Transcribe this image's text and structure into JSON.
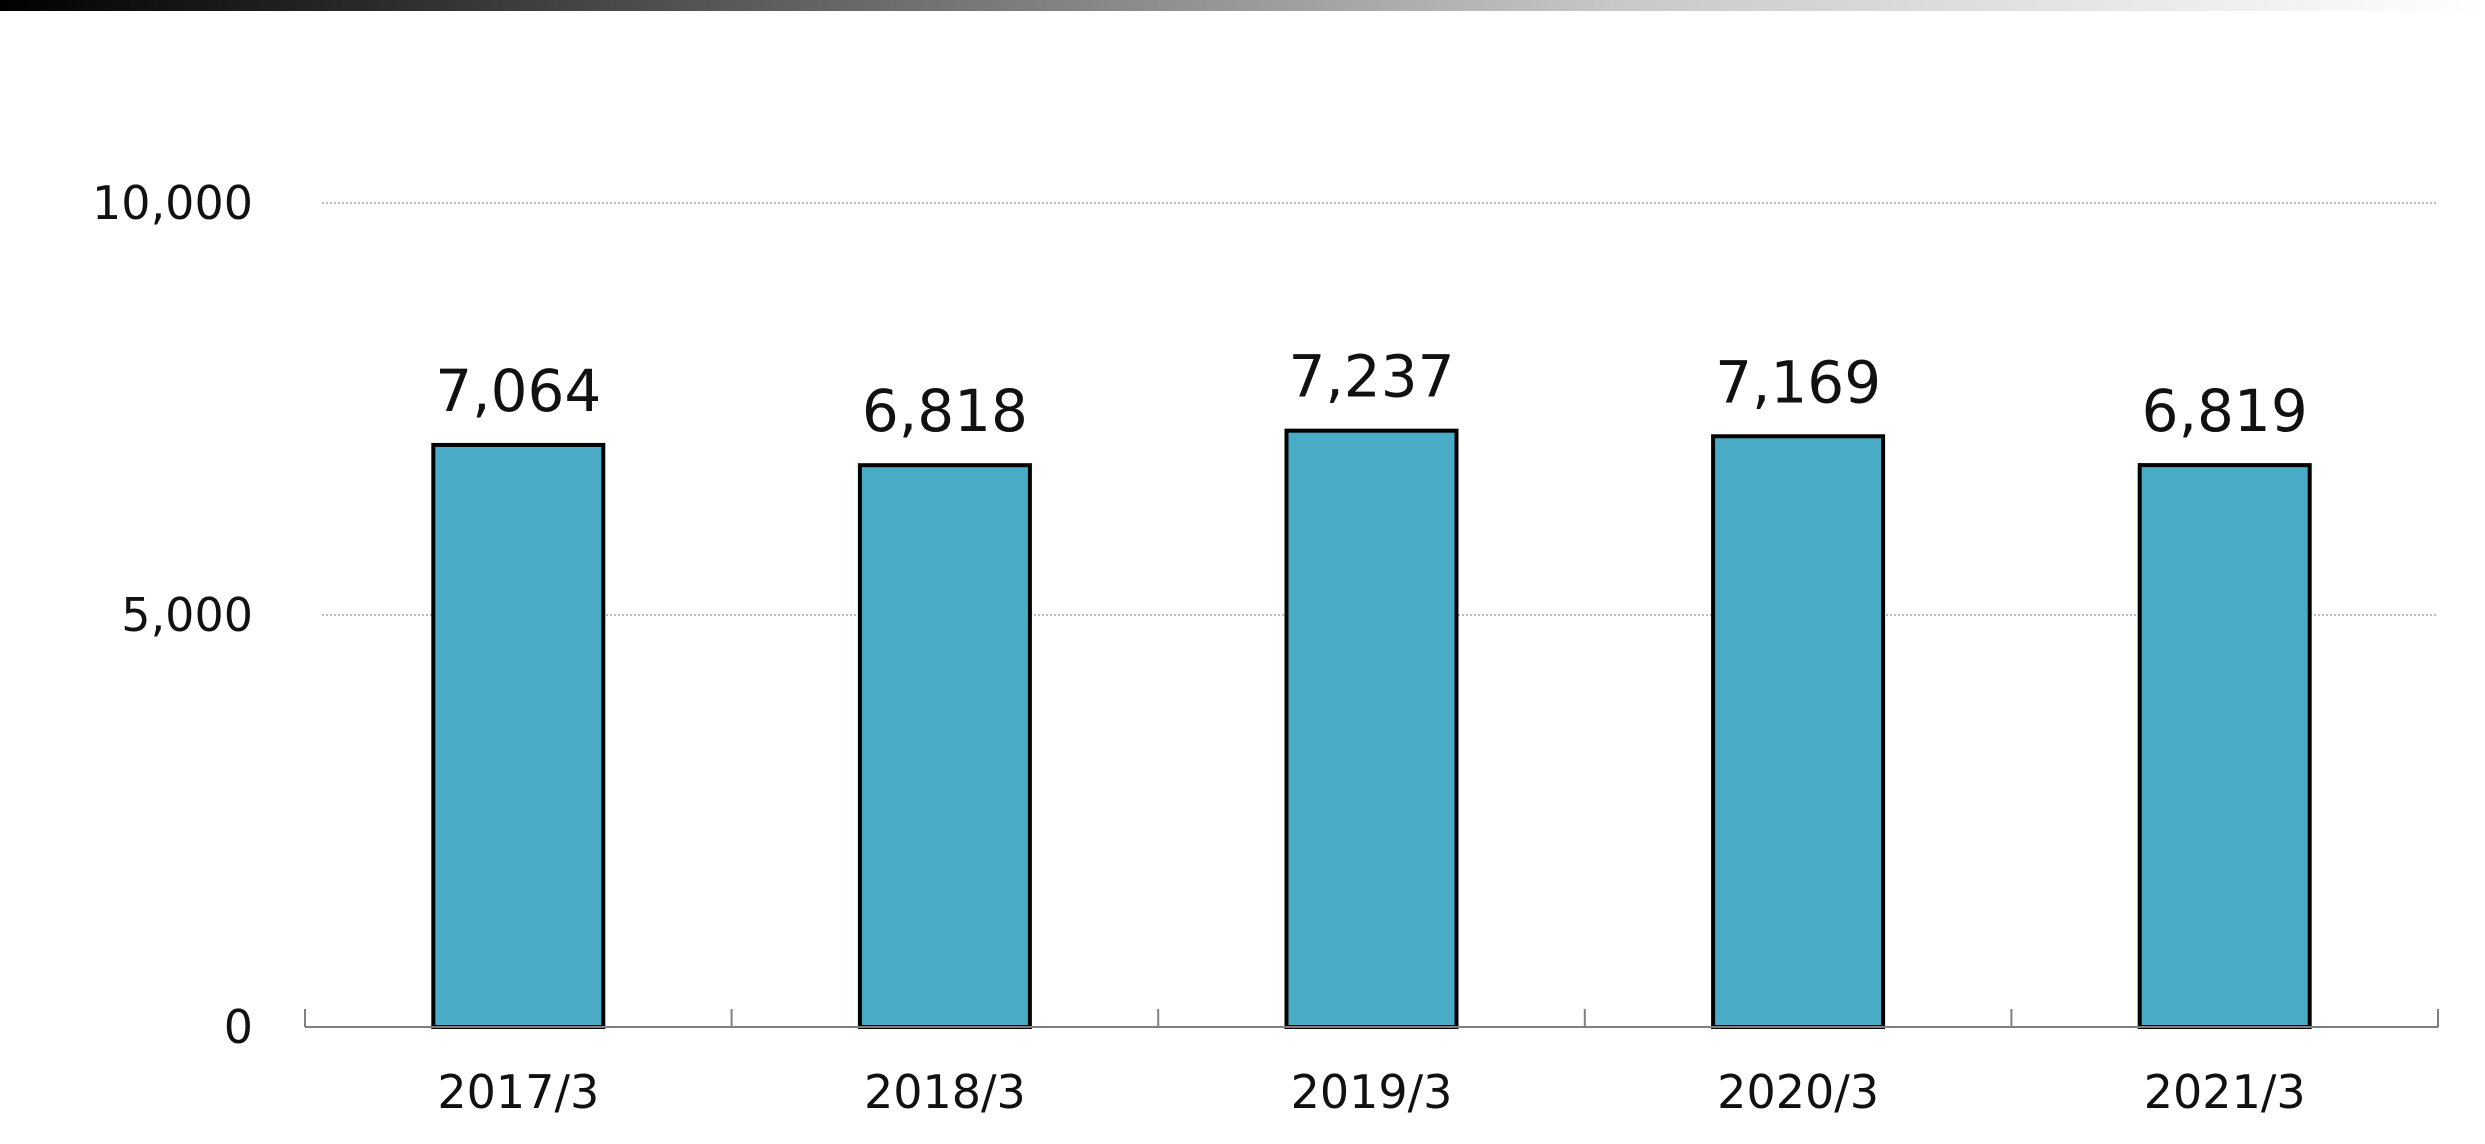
{
  "chart_data": {
    "type": "bar",
    "categories": [
      "2017/3",
      "2018/3",
      "2019/3",
      "2020/3",
      "2021/3"
    ],
    "values": [
      7064,
      6818,
      7237,
      7169,
      6819
    ],
    "data_labels": [
      "7,064",
      "6,818",
      "7,237",
      "7,169",
      "6,819"
    ],
    "ylim": [
      0,
      10000
    ],
    "yticks": [
      0,
      5000,
      10000
    ],
    "ytick_labels": [
      "0",
      "5,000",
      "10,000"
    ],
    "grid": true,
    "legend": "none",
    "colors": {
      "bar_fill": "#4aabc6",
      "bar_stroke": "#000000",
      "grid": "#a6a6a6",
      "axis": "#808080"
    }
  }
}
